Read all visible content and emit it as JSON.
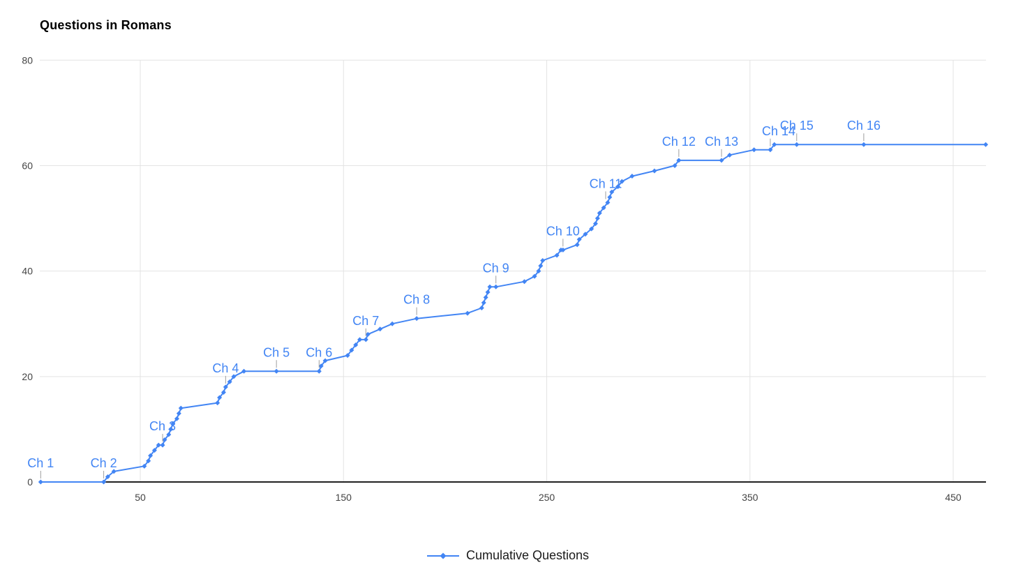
{
  "title": "Questions in Romans",
  "legend": {
    "label": "Cumulative Questions"
  },
  "colors": {
    "series": "#4285f4",
    "grid": "#e3e3e3",
    "baseline": "#212121",
    "tick_label": "#444444",
    "annotation_text": "#4285f4",
    "annotation_tick": "#9e9e9e",
    "title_text": "#000000",
    "legend_text": "#1a1a1a",
    "background": "#ffffff"
  },
  "chart_data": {
    "type": "line",
    "title": "Questions in Romans",
    "xlabel": "",
    "ylabel": "",
    "grid": true,
    "legend_position": "bottom",
    "x_axis": {
      "min": 0,
      "max": 466,
      "tick_values": [
        50,
        150,
        250,
        350,
        450
      ]
    },
    "y_axis": {
      "min": 0,
      "max": 80,
      "tick_values": [
        0,
        20,
        40,
        60,
        80
      ]
    },
    "series": [
      {
        "name": "Cumulative Questions",
        "marker": "diamond",
        "points": [
          [
            1,
            0
          ],
          [
            32,
            0
          ],
          [
            34,
            1
          ],
          [
            37,
            2
          ],
          [
            52,
            3
          ],
          [
            54,
            4
          ],
          [
            55,
            5
          ],
          [
            57,
            6
          ],
          [
            59,
            7
          ],
          [
            61,
            7
          ],
          [
            62,
            8
          ],
          [
            64,
            9
          ],
          [
            65,
            10
          ],
          [
            66,
            11
          ],
          [
            68,
            12
          ],
          [
            69,
            13
          ],
          [
            70,
            14
          ],
          [
            88,
            15
          ],
          [
            89,
            16
          ],
          [
            91,
            17
          ],
          [
            92,
            18
          ],
          [
            94,
            19
          ],
          [
            96,
            20
          ],
          [
            101,
            21
          ],
          [
            117,
            21
          ],
          [
            138,
            21
          ],
          [
            139,
            22
          ],
          [
            141,
            23
          ],
          [
            152,
            24
          ],
          [
            154,
            25
          ],
          [
            156,
            26
          ],
          [
            158,
            27
          ],
          [
            161,
            27
          ],
          [
            162,
            28
          ],
          [
            168,
            29
          ],
          [
            174,
            30
          ],
          [
            186,
            31
          ],
          [
            211,
            32
          ],
          [
            218,
            33
          ],
          [
            219,
            34
          ],
          [
            220,
            35
          ],
          [
            221,
            36
          ],
          [
            222,
            37
          ],
          [
            225,
            37
          ],
          [
            239,
            38
          ],
          [
            244,
            39
          ],
          [
            246,
            40
          ],
          [
            247,
            41
          ],
          [
            248,
            42
          ],
          [
            255,
            43
          ],
          [
            257,
            44
          ],
          [
            258,
            44
          ],
          [
            265,
            45
          ],
          [
            266,
            46
          ],
          [
            269,
            47
          ],
          [
            272,
            48
          ],
          [
            274,
            49
          ],
          [
            275,
            50
          ],
          [
            276,
            51
          ],
          [
            278,
            52
          ],
          [
            280,
            53
          ],
          [
            281,
            54
          ],
          [
            282,
            55
          ],
          [
            285,
            56
          ],
          [
            287,
            57
          ],
          [
            292,
            58
          ],
          [
            303,
            59
          ],
          [
            313,
            60
          ],
          [
            315,
            61
          ],
          [
            336,
            61
          ],
          [
            340,
            62
          ],
          [
            352,
            63
          ],
          [
            360,
            63
          ],
          [
            362,
            64
          ],
          [
            373,
            64
          ],
          [
            406,
            64
          ],
          [
            466,
            64
          ]
        ]
      }
    ],
    "annotations": [
      {
        "label": "Ch 1",
        "x": 1,
        "y": 0
      },
      {
        "label": "Ch 2",
        "x": 32,
        "y": 0
      },
      {
        "label": "Ch 3",
        "x": 61,
        "y": 7
      },
      {
        "label": "Ch 4",
        "x": 92,
        "y": 18
      },
      {
        "label": "Ch 5",
        "x": 117,
        "y": 21
      },
      {
        "label": "Ch 6",
        "x": 138,
        "y": 21
      },
      {
        "label": "Ch 7",
        "x": 161,
        "y": 27
      },
      {
        "label": "Ch 8",
        "x": 186,
        "y": 31
      },
      {
        "label": "Ch 9",
        "x": 225,
        "y": 37
      },
      {
        "label": "Ch 10",
        "x": 258,
        "y": 44
      },
      {
        "label": "Ch 11",
        "x": 279,
        "y": 53
      },
      {
        "label": "Ch 12",
        "x": 315,
        "y": 61
      },
      {
        "label": "Ch 13",
        "x": 336,
        "y": 61
      },
      {
        "label": "Ch 14",
        "x": 360,
        "y": 63,
        "label_dx": 12
      },
      {
        "label": "Ch 15",
        "x": 373,
        "y": 64
      },
      {
        "label": "Ch 16",
        "x": 406,
        "y": 64
      }
    ]
  }
}
